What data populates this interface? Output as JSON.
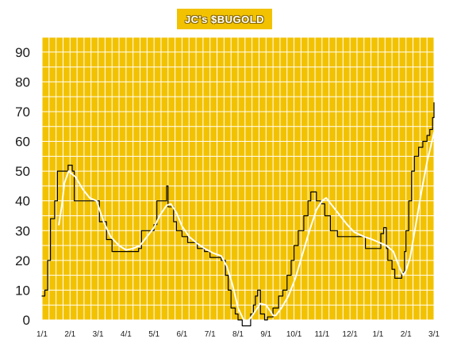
{
  "chart_data": {
    "type": "line",
    "title": "JC's $BUGOLD",
    "xlabel": "",
    "ylabel": "",
    "ylim": [
      0,
      95
    ],
    "y_ticks": [
      0,
      10,
      20,
      30,
      40,
      50,
      60,
      70,
      80,
      90
    ],
    "x_tick_labels": [
      "1/1",
      "2/1",
      "3/1",
      "4/1",
      "5/1",
      "6/1",
      "7/1",
      "8/1",
      "9/1",
      "10/1",
      "11/1",
      "12/1",
      "1/1",
      "2/1",
      "3/1"
    ],
    "grid": true,
    "background_color": "#f2c200",
    "series": [
      {
        "color": "#000000",
        "style": "step",
        "points": [
          [
            0.0,
            8
          ],
          [
            0.1,
            10
          ],
          [
            0.2,
            20
          ],
          [
            0.3,
            34
          ],
          [
            0.45,
            40
          ],
          [
            0.55,
            50
          ],
          [
            0.85,
            50
          ],
          [
            0.93,
            52
          ],
          [
            1.08,
            50
          ],
          [
            1.15,
            40
          ],
          [
            1.55,
            40
          ],
          [
            1.95,
            40
          ],
          [
            2.05,
            33
          ],
          [
            2.3,
            27
          ],
          [
            2.5,
            23
          ],
          [
            3.0,
            23
          ],
          [
            3.45,
            24
          ],
          [
            3.55,
            30
          ],
          [
            3.8,
            30
          ],
          [
            4.0,
            32
          ],
          [
            4.1,
            40
          ],
          [
            4.35,
            40
          ],
          [
            4.45,
            45
          ],
          [
            4.5,
            38
          ],
          [
            4.7,
            33
          ],
          [
            4.8,
            30
          ],
          [
            5.0,
            28
          ],
          [
            5.2,
            26
          ],
          [
            5.45,
            26
          ],
          [
            5.55,
            24
          ],
          [
            5.8,
            23
          ],
          [
            6.0,
            21
          ],
          [
            6.4,
            20
          ],
          [
            6.55,
            15
          ],
          [
            6.65,
            10
          ],
          [
            6.75,
            4
          ],
          [
            6.9,
            2
          ],
          [
            7.0,
            0
          ],
          [
            7.15,
            -2
          ],
          [
            7.4,
            -2
          ],
          [
            7.45,
            2
          ],
          [
            7.55,
            5
          ],
          [
            7.62,
            8
          ],
          [
            7.7,
            10
          ],
          [
            7.8,
            2
          ],
          [
            7.95,
            0
          ],
          [
            8.05,
            1
          ],
          [
            8.25,
            4
          ],
          [
            8.45,
            8
          ],
          [
            8.6,
            10
          ],
          [
            8.75,
            15
          ],
          [
            8.9,
            20
          ],
          [
            9.0,
            25
          ],
          [
            9.15,
            30
          ],
          [
            9.35,
            35
          ],
          [
            9.5,
            40
          ],
          [
            9.6,
            43
          ],
          [
            9.8,
            40
          ],
          [
            9.95,
            39
          ],
          [
            10.1,
            35
          ],
          [
            10.3,
            30
          ],
          [
            10.55,
            28
          ],
          [
            11.0,
            28
          ],
          [
            11.45,
            28
          ],
          [
            11.55,
            24
          ],
          [
            12.0,
            24
          ],
          [
            12.1,
            29
          ],
          [
            12.2,
            31
          ],
          [
            12.3,
            24
          ],
          [
            12.35,
            20
          ],
          [
            12.5,
            17
          ],
          [
            12.6,
            14
          ],
          [
            12.85,
            16
          ],
          [
            12.95,
            23
          ],
          [
            13.0,
            30
          ],
          [
            13.1,
            40
          ],
          [
            13.2,
            50
          ],
          [
            13.3,
            55
          ],
          [
            13.45,
            58
          ],
          [
            13.6,
            60
          ],
          [
            13.75,
            62
          ],
          [
            13.85,
            64
          ],
          [
            13.95,
            68
          ],
          [
            14.0,
            73
          ]
        ]
      },
      {
        "color": "#ffffff",
        "style": "smooth",
        "points": [
          [
            0.6,
            32
          ],
          [
            0.7,
            38
          ],
          [
            0.8,
            46
          ],
          [
            0.95,
            50
          ],
          [
            1.2,
            48
          ],
          [
            1.45,
            44
          ],
          [
            1.7,
            41
          ],
          [
            1.95,
            40
          ],
          [
            2.2,
            33
          ],
          [
            2.45,
            28
          ],
          [
            2.75,
            25
          ],
          [
            3.0,
            23.5
          ],
          [
            3.25,
            24
          ],
          [
            3.5,
            25
          ],
          [
            3.75,
            28
          ],
          [
            4.0,
            31
          ],
          [
            4.2,
            35
          ],
          [
            4.45,
            38.5
          ],
          [
            4.6,
            39
          ],
          [
            4.8,
            36
          ],
          [
            5.0,
            31.5
          ],
          [
            5.25,
            28
          ],
          [
            5.5,
            26
          ],
          [
            5.8,
            24
          ],
          [
            6.1,
            22.5
          ],
          [
            6.4,
            21.5
          ],
          [
            6.6,
            18
          ],
          [
            6.8,
            12
          ],
          [
            7.0,
            4
          ],
          [
            7.2,
            0
          ],
          [
            7.35,
            -0.5
          ],
          [
            7.55,
            2
          ],
          [
            7.8,
            5.5
          ],
          [
            8.0,
            5
          ],
          [
            8.15,
            3
          ],
          [
            8.25,
            1.5
          ],
          [
            8.35,
            1.5
          ],
          [
            8.55,
            4
          ],
          [
            8.8,
            8
          ],
          [
            9.05,
            14
          ],
          [
            9.3,
            22
          ],
          [
            9.55,
            30
          ],
          [
            9.8,
            37
          ],
          [
            10.0,
            40
          ],
          [
            10.15,
            41
          ],
          [
            10.4,
            38
          ],
          [
            10.65,
            35
          ],
          [
            10.9,
            32
          ],
          [
            11.15,
            29.5
          ],
          [
            11.5,
            28
          ],
          [
            11.8,
            27
          ],
          [
            12.05,
            26
          ],
          [
            12.3,
            25
          ],
          [
            12.55,
            23
          ],
          [
            12.75,
            18
          ],
          [
            12.9,
            15
          ],
          [
            13.0,
            16.5
          ],
          [
            13.15,
            21
          ],
          [
            13.35,
            32
          ],
          [
            13.55,
            43
          ],
          [
            13.75,
            53
          ],
          [
            13.9,
            59
          ],
          [
            14.0,
            63
          ]
        ]
      }
    ]
  }
}
